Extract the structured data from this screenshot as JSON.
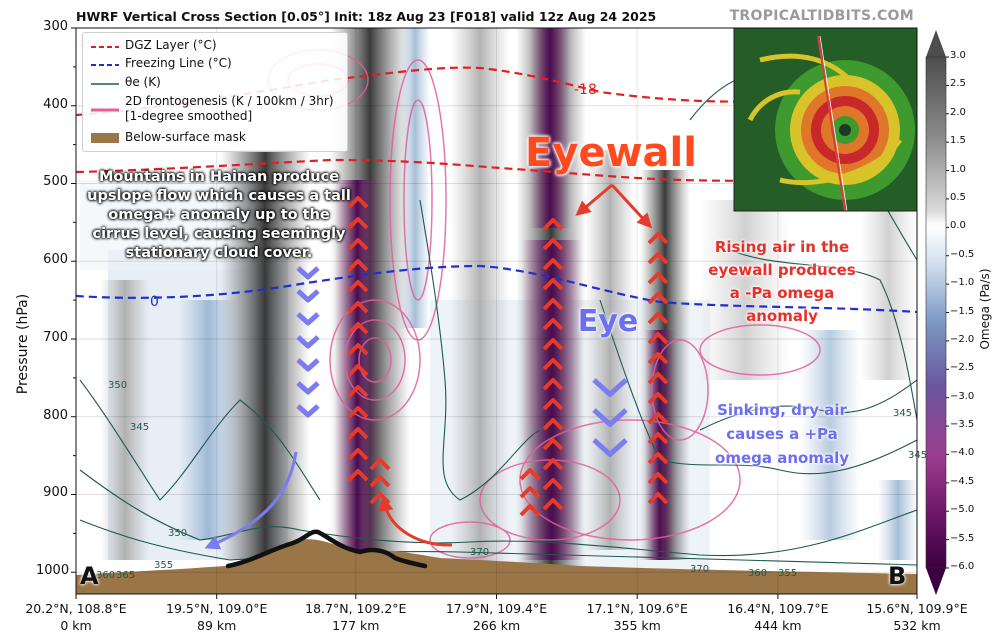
{
  "header": {
    "title": "HWRF Vertical Cross Section [0.05°] Init: 18z Aug 23 [F018] valid 12z Aug 24 2025",
    "site": "TROPICALTIDBITS.COM"
  },
  "chart_data": {
    "type": "heatmap",
    "ylabel": "Pressure (hPa)",
    "yticks": [
      "300",
      "400",
      "500",
      "600",
      "700",
      "800",
      "900",
      "1000"
    ],
    "xticks": [
      {
        "latlon": "20.2°N, 108.8°E",
        "dist": "0 km"
      },
      {
        "latlon": "19.5°N, 109.0°E",
        "dist": "89 km"
      },
      {
        "latlon": "18.7°N, 109.2°E",
        "dist": "177 km"
      },
      {
        "latlon": "17.9°N, 109.4°E",
        "dist": "266 km"
      },
      {
        "latlon": "17.1°N, 109.6°E",
        "dist": "355 km"
      },
      {
        "latlon": "16.4°N, 109.7°E",
        "dist": "444 km"
      },
      {
        "latlon": "15.6°N, 109.9°E",
        "dist": "532 km"
      }
    ],
    "xlim_km": [
      0,
      532
    ],
    "ylim_hpa": [
      1000,
      300
    ],
    "colorbar": {
      "label": "Omega (Pa/s)",
      "ticks": [
        "3.0",
        "2.5",
        "2.0",
        "1.5",
        "1.0",
        "0.5",
        "0.0",
        "−0.5",
        "−1.0",
        "−1.5",
        "−2.0",
        "−2.5",
        "−3.0",
        "−3.5",
        "−4.0",
        "−4.5",
        "−5.0",
        "−5.5",
        "−6.0"
      ]
    },
    "legend": [
      {
        "label": "DGZ Layer (°C)",
        "color": "#e02020",
        "style": "dashed"
      },
      {
        "label": "Freezing Line (°C)",
        "color": "#1f2fd0",
        "style": "dashed"
      },
      {
        "label": "θe (K)",
        "color": "#1e5a4e",
        "style": "solid"
      },
      {
        "label": "2D frontogenesis (K / 100km / 3hr)",
        "label2": "[1-degree smoothed]",
        "color": "#e0609a",
        "style": "solid"
      },
      {
        "label": "Below-surface mask",
        "color": "#9a7548",
        "style": "patch"
      }
    ],
    "contour_labels": {
      "dgz": "-18",
      "freezing": "0",
      "theta_e": [
        "350",
        "345",
        "350",
        "355",
        "360",
        "365",
        "370",
        "345",
        "345",
        "370",
        "360",
        "355"
      ]
    },
    "endpoints": {
      "left": "A",
      "right": "B"
    }
  },
  "annotations": {
    "mountains": [
      "Mountains in Hainan produce",
      "upslope flow which causes a tall",
      "omega+ anomaly up to the",
      "cirrus level, causing seemingly",
      "stationary cloud cover."
    ],
    "eyewall": "Eyewall",
    "eye": "Eye",
    "rising": [
      "Rising air in the",
      "eyewall produces",
      "a -Pa omega",
      "anomaly"
    ],
    "sinking": [
      "Sinking, dry air",
      "causes a +Pa",
      "omega anomaly"
    ]
  }
}
